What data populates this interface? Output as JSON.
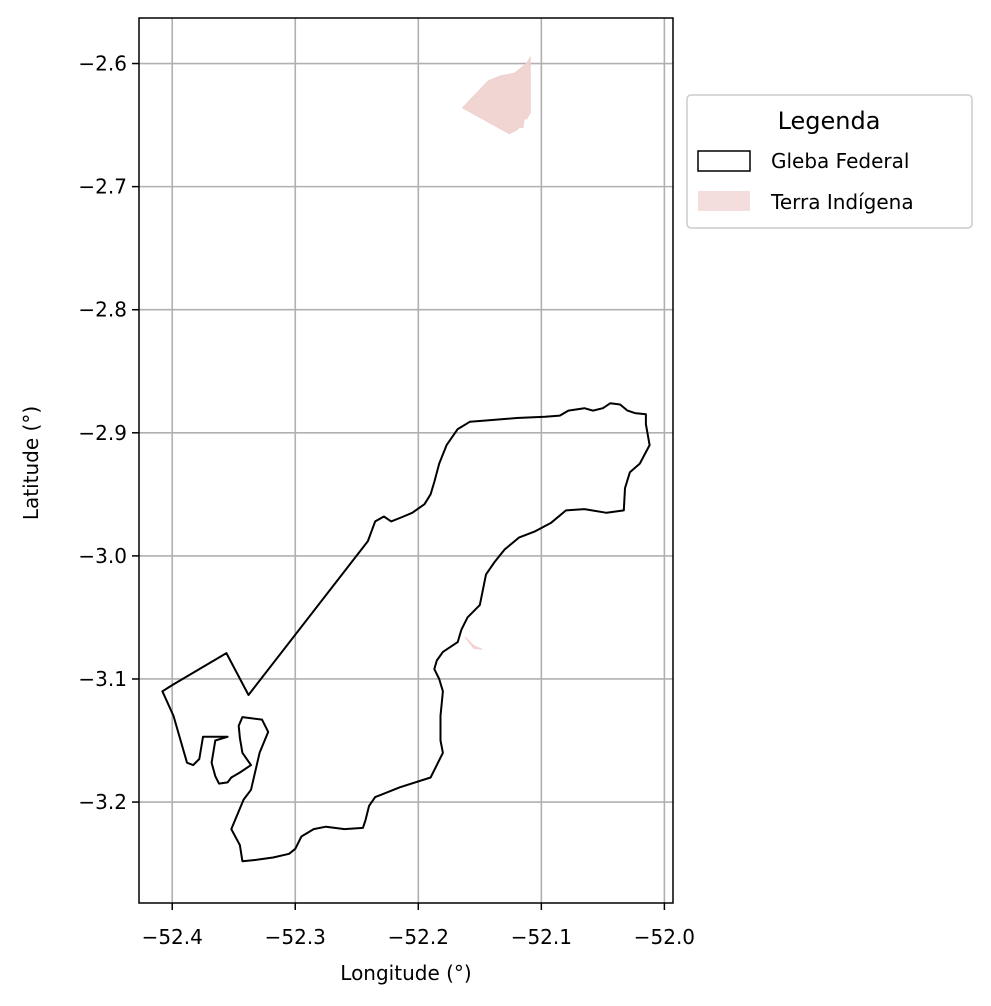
{
  "chart_data": {
    "type": "map",
    "xlabel": "Longitude (°)",
    "ylabel": "Latitude (°)",
    "xlim": [
      -52.427,
      -51.993
    ],
    "ylim": [
      -3.282,
      -2.563
    ],
    "grid": true,
    "x_ticks": [
      {
        "value": -52.4,
        "label": "−52.4"
      },
      {
        "value": -52.3,
        "label": "−52.3"
      },
      {
        "value": -52.2,
        "label": "−52.2"
      },
      {
        "value": -52.1,
        "label": "−52.1"
      },
      {
        "value": -52.0,
        "label": "−52.0"
      }
    ],
    "y_ticks": [
      {
        "value": -2.6,
        "label": "−2.6"
      },
      {
        "value": -2.7,
        "label": "−2.7"
      },
      {
        "value": -2.8,
        "label": "−2.8"
      },
      {
        "value": -2.9,
        "label": "−2.9"
      },
      {
        "value": -3.0,
        "label": "−3.0"
      },
      {
        "value": -3.1,
        "label": "−3.1"
      },
      {
        "value": -3.2,
        "label": "−3.2"
      }
    ],
    "legend": {
      "title": "Legenda",
      "placement": "outside-upper-right",
      "entries": [
        {
          "label": "Gleba Federal",
          "style": "outline",
          "edge_color": "#000000",
          "fill_color": "#ffffff"
        },
        {
          "label": "Terra Indígena",
          "style": "fill",
          "fill_color": "#f4dedd"
        }
      ]
    },
    "layers": [
      {
        "name": "Gleba Federal",
        "style": "outline",
        "stroke": "#000000",
        "polygons": [
          [
            [
              -52.408,
              -3.11
            ],
            [
              -52.4,
              -3.105
            ],
            [
              -52.356,
              -3.079
            ],
            [
              -52.338,
              -3.113
            ],
            [
              -52.241,
              -2.988
            ],
            [
              -52.238,
              -2.98
            ],
            [
              -52.235,
              -2.972
            ],
            [
              -52.228,
              -2.968
            ],
            [
              -52.222,
              -2.972
            ],
            [
              -52.212,
              -2.968
            ],
            [
              -52.205,
              -2.965
            ],
            [
              -52.195,
              -2.958
            ],
            [
              -52.19,
              -2.95
            ],
            [
              -52.187,
              -2.94
            ],
            [
              -52.183,
              -2.925
            ],
            [
              -52.177,
              -2.91
            ],
            [
              -52.168,
              -2.897
            ],
            [
              -52.158,
              -2.891
            ],
            [
              -52.145,
              -2.89
            ],
            [
              -52.12,
              -2.888
            ],
            [
              -52.097,
              -2.887
            ],
            [
              -52.085,
              -2.886
            ],
            [
              -52.078,
              -2.882
            ],
            [
              -52.065,
              -2.88
            ],
            [
              -52.058,
              -2.882
            ],
            [
              -52.05,
              -2.88
            ],
            [
              -52.044,
              -2.876
            ],
            [
              -52.036,
              -2.877
            ],
            [
              -52.03,
              -2.882
            ],
            [
              -52.024,
              -2.884
            ],
            [
              -52.015,
              -2.885
            ],
            [
              -52.015,
              -2.893
            ],
            [
              -52.012,
              -2.91
            ],
            [
              -52.02,
              -2.925
            ],
            [
              -52.028,
              -2.932
            ],
            [
              -52.032,
              -2.945
            ],
            [
              -52.033,
              -2.963
            ],
            [
              -52.047,
              -2.965
            ],
            [
              -52.065,
              -2.962
            ],
            [
              -52.08,
              -2.963
            ],
            [
              -52.092,
              -2.973
            ],
            [
              -52.105,
              -2.98
            ],
            [
              -52.118,
              -2.985
            ],
            [
              -52.13,
              -2.995
            ],
            [
              -52.138,
              -3.005
            ],
            [
              -52.145,
              -3.015
            ],
            [
              -52.148,
              -3.03
            ],
            [
              -52.15,
              -3.04
            ],
            [
              -52.16,
              -3.05
            ],
            [
              -52.165,
              -3.06
            ],
            [
              -52.168,
              -3.07
            ],
            [
              -52.18,
              -3.078
            ],
            [
              -52.185,
              -3.085
            ],
            [
              -52.187,
              -3.092
            ],
            [
              -52.183,
              -3.1
            ],
            [
              -52.18,
              -3.11
            ],
            [
              -52.182,
              -3.13
            ],
            [
              -52.182,
              -3.15
            ],
            [
              -52.18,
              -3.16
            ],
            [
              -52.185,
              -3.17
            ],
            [
              -52.19,
              -3.18
            ],
            [
              -52.215,
              -3.188
            ],
            [
              -52.235,
              -3.196
            ],
            [
              -52.24,
              -3.203
            ],
            [
              -52.243,
              -3.215
            ],
            [
              -52.245,
              -3.221
            ],
            [
              -52.26,
              -3.222
            ],
            [
              -52.275,
              -3.22
            ],
            [
              -52.285,
              -3.222
            ],
            [
              -52.295,
              -3.228
            ],
            [
              -52.3,
              -3.238
            ],
            [
              -52.305,
              -3.242
            ],
            [
              -52.318,
              -3.245
            ],
            [
              -52.332,
              -3.247
            ],
            [
              -52.343,
              -3.248
            ],
            [
              -52.345,
              -3.235
            ],
            [
              -52.352,
              -3.222
            ],
            [
              -52.342,
              -3.198
            ],
            [
              -52.336,
              -3.19
            ],
            [
              -52.329,
              -3.16
            ],
            [
              -52.322,
              -3.143
            ],
            [
              -52.327,
              -3.133
            ],
            [
              -52.335,
              -3.132
            ],
            [
              -52.343,
              -3.131
            ],
            [
              -52.346,
              -3.138
            ],
            [
              -52.345,
              -3.148
            ],
            [
              -52.343,
              -3.16
            ],
            [
              -52.336,
              -3.17
            ],
            [
              -52.345,
              -3.176
            ],
            [
              -52.352,
              -3.18
            ],
            [
              -52.355,
              -3.184
            ],
            [
              -52.362,
              -3.185
            ],
            [
              -52.365,
              -3.179
            ],
            [
              -52.368,
              -3.168
            ],
            [
              -52.365,
              -3.15
            ],
            [
              -52.355,
              -3.147
            ],
            [
              -52.375,
              -3.147
            ],
            [
              -52.378,
              -3.165
            ],
            [
              -52.383,
              -3.17
            ],
            [
              -52.388,
              -3.168
            ],
            [
              -52.399,
              -3.13
            ]
          ]
        ]
      },
      {
        "name": "Terra Indígena",
        "style": "fill",
        "fill": "#f0d0ce",
        "opacity": 0.9,
        "polygons": [
          [
            [
              -52.164,
              -2.636
            ],
            [
              -52.143,
              -2.614
            ],
            [
              -52.133,
              -2.61
            ],
            [
              -52.122,
              -2.608
            ],
            [
              -52.112,
              -2.6
            ],
            [
              -52.109,
              -2.595
            ],
            [
              -52.109,
              -2.64
            ],
            [
              -52.112,
              -2.645
            ],
            [
              -52.114,
              -2.645
            ],
            [
              -52.115,
              -2.652
            ],
            [
              -52.118,
              -2.652
            ],
            [
              -52.12,
              -2.654
            ],
            [
              -52.126,
              -2.657
            ]
          ],
          [
            [
              -52.162,
              -3.066
            ],
            [
              -52.155,
              -3.073
            ],
            [
              -52.148,
              -3.076
            ],
            [
              -52.155,
              -3.075
            ]
          ]
        ]
      }
    ]
  }
}
